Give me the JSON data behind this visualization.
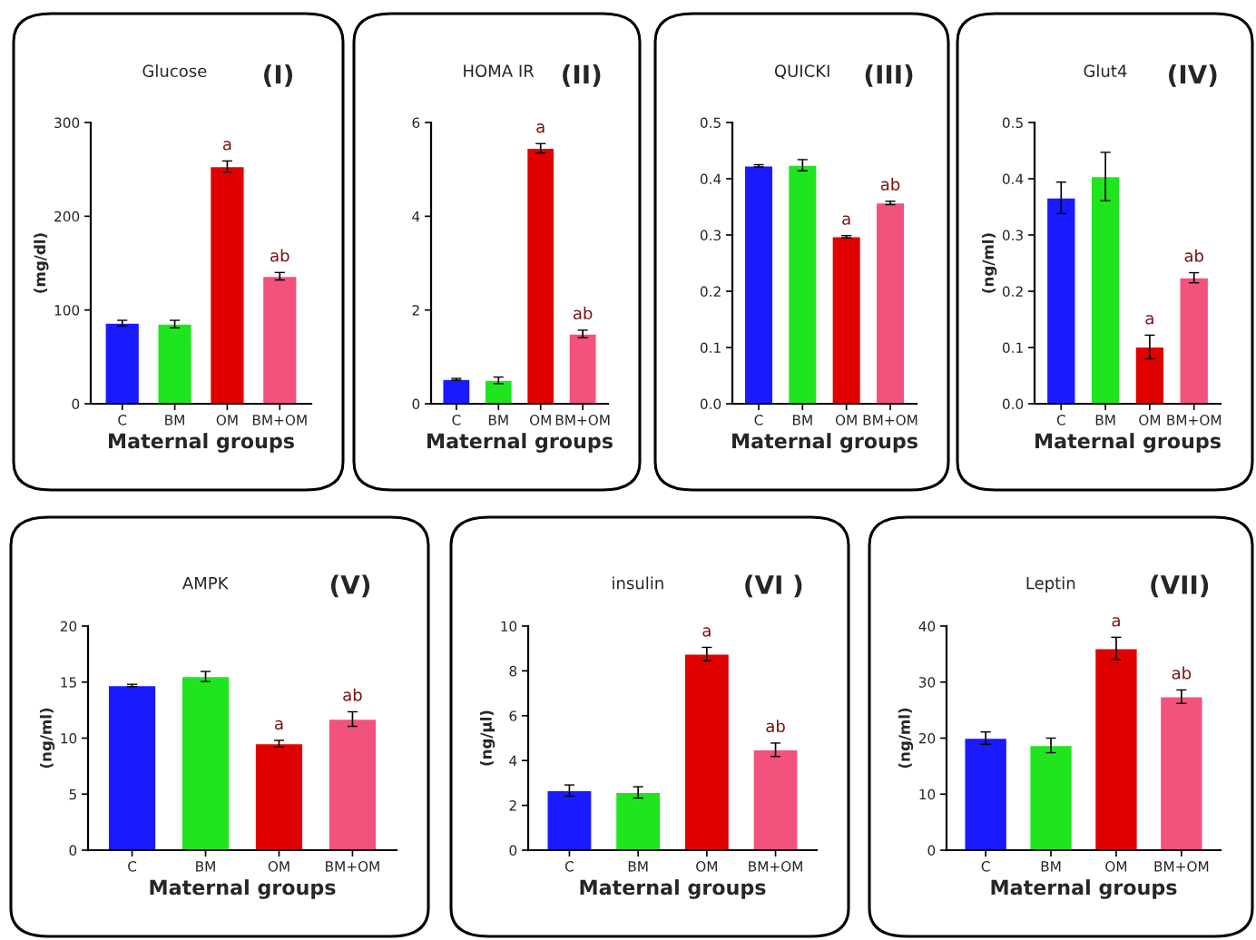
{
  "chart_data": [
    {
      "type": "bar",
      "title": "Glucose",
      "xlabel": "Maternal groups",
      "ylabel": "(mg/dl)",
      "categories": [
        "C",
        "BM",
        "OM",
        "BM+OM"
      ],
      "colors": [
        "#1a1aff",
        "#1fe51f",
        "#e00000",
        "#f2527c"
      ],
      "values": [
        86,
        85,
        253,
        136
      ],
      "errors": [
        3,
        4,
        6,
        4
      ],
      "ylim": [
        0,
        300
      ],
      "yticks": [
        0,
        100,
        200,
        300
      ],
      "grid": false,
      "legend": false,
      "annotations": [
        "(I)",
        {
          "text": "a",
          "x": "OM",
          "y": 259
        },
        {
          "text": "ab",
          "x": "BM+OM",
          "y": 140
        }
      ]
    },
    {
      "type": "bar",
      "title": "HOMA IR",
      "xlabel": "Maternal groups",
      "categories": [
        "C",
        "BM",
        "OM",
        "BM+OM"
      ],
      "colors": [
        "#1a1aff",
        "#1fe51f",
        "#e00000",
        "#f2527c"
      ],
      "values": [
        0.52,
        0.5,
        5.45,
        1.49
      ],
      "errors": [
        0.02,
        0.07,
        0.1,
        0.08
      ],
      "ylim": [
        0,
        6
      ],
      "yticks": [
        0,
        2,
        4,
        6
      ],
      "grid": false,
      "legend": false,
      "annotations": [
        "(II)",
        {
          "text": "a",
          "x": "OM",
          "y": 5.55
        },
        {
          "text": "ab",
          "x": "BM+OM",
          "y": 1.57
        }
      ]
    },
    {
      "type": "bar",
      "title": "QUICKI",
      "xlabel": "Maternal groups",
      "categories": [
        "C",
        "BM",
        "OM",
        "BM+OM"
      ],
      "colors": [
        "#1a1aff",
        "#1fe51f",
        "#e00000",
        "#f2527c"
      ],
      "values": [
        0.423,
        0.424,
        0.297,
        0.357
      ],
      "errors": [
        0.002,
        0.01,
        0.002,
        0.003
      ],
      "ylim": [
        0,
        0.5
      ],
      "yticks": [
        {
          "value": 0,
          "label": "0.0"
        },
        0.1,
        0.2,
        0.3,
        0.4,
        0.5
      ],
      "grid": false,
      "legend": false,
      "annotations": [
        "(III)",
        {
          "text": "a",
          "x": "OM",
          "y": 0.299
        },
        {
          "text": "ab",
          "x": "BM+OM",
          "y": 0.36
        }
      ]
    },
    {
      "type": "bar",
      "title": "Glut4",
      "xlabel": "Maternal groups",
      "ylabel": "(ng/ml)",
      "categories": [
        "C",
        "BM",
        "OM",
        "BM+OM"
      ],
      "colors": [
        "#1a1aff",
        "#1fe51f",
        "#e00000",
        "#f2527c"
      ],
      "values": [
        0.366,
        0.404,
        0.101,
        0.224
      ],
      "errors": [
        0.028,
        0.043,
        0.021,
        0.009
      ],
      "ylim": [
        0,
        0.5
      ],
      "yticks": [
        {
          "value": 0,
          "label": "0.0"
        },
        0.1,
        0.2,
        0.3,
        0.4,
        0.5
      ],
      "grid": false,
      "legend": false,
      "annotations": [
        "(IV)",
        {
          "text": "a",
          "x": "OM",
          "y": 0.122
        },
        {
          "text": "ab",
          "x": "BM+OM",
          "y": 0.233
        }
      ]
    },
    {
      "type": "bar",
      "title": "AMPK",
      "xlabel": "Maternal groups",
      "ylabel": "(ng/ml)",
      "categories": [
        "C",
        "BM",
        "OM",
        "BM+OM"
      ],
      "colors": [
        "#1a1aff",
        "#1fe51f",
        "#e00000",
        "#f2527c"
      ],
      "values": [
        14.7,
        15.5,
        9.5,
        11.7
      ],
      "errors": [
        0.1,
        0.45,
        0.3,
        0.65
      ],
      "ylim": [
        0,
        20
      ],
      "yticks": [
        0,
        5,
        10,
        15,
        20
      ],
      "grid": false,
      "legend": false,
      "annotations": [
        "(V)",
        {
          "text": "a",
          "x": "OM",
          "y": 9.8
        },
        {
          "text": "ab",
          "x": "BM+OM",
          "y": 12.35
        }
      ]
    },
    {
      "type": "bar",
      "title": "insulin",
      "xlabel": "Maternal groups",
      "ylabel": "(ng/µl)",
      "categories": [
        "C",
        "BM",
        "OM",
        "BM+OM"
      ],
      "colors": [
        "#1a1aff",
        "#1fe51f",
        "#e00000",
        "#f2527c"
      ],
      "values": [
        2.66,
        2.58,
        8.75,
        4.48
      ],
      "errors": [
        0.25,
        0.25,
        0.3,
        0.3
      ],
      "ylim": [
        0,
        10
      ],
      "yticks": [
        0,
        2,
        4,
        6,
        8,
        10
      ],
      "grid": false,
      "legend": false,
      "annotations": [
        "(VI )",
        {
          "text": "a",
          "x": "OM",
          "y": 9.05
        },
        {
          "text": "ab",
          "x": "BM+OM",
          "y": 4.78
        }
      ]
    },
    {
      "type": "bar",
      "title": "Leptin",
      "xlabel": "Maternal groups",
      "ylabel": "(ng/ml)",
      "categories": [
        "C",
        "BM",
        "OM",
        "BM+OM"
      ],
      "colors": [
        "#1a1aff",
        "#1fe51f",
        "#e00000",
        "#f2527c"
      ],
      "values": [
        20,
        18.7,
        36,
        27.4
      ],
      "errors": [
        1.1,
        1.3,
        2,
        1.2
      ],
      "ylim": [
        0,
        40
      ],
      "yticks": [
        0,
        10,
        20,
        30,
        40
      ],
      "grid": false,
      "legend": false,
      "annotations": [
        "(VII)",
        {
          "text": "a",
          "x": "OM",
          "y": 38
        },
        {
          "text": "ab",
          "x": "BM+OM",
          "y": 28.6
        }
      ]
    }
  ]
}
